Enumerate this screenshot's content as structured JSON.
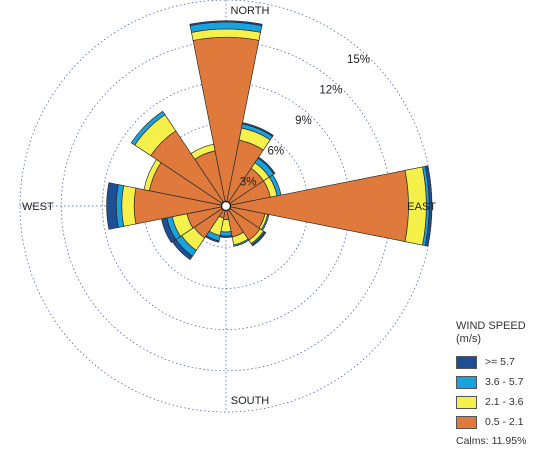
{
  "chart_data": {
    "type": "wind-rose",
    "directions": [
      "N",
      "NNE",
      "NE",
      "ENE",
      "E",
      "ESE",
      "SE",
      "SSE",
      "S",
      "SSW",
      "SW",
      "WSW",
      "W",
      "WNW",
      "NW",
      "NNW"
    ],
    "direction_labels": {
      "north": "NORTH",
      "east": "EAST",
      "south": "SOUTH",
      "west": "WEST"
    },
    "rings": [
      3,
      6,
      9,
      12,
      15
    ],
    "ring_labels": [
      "3%",
      "6%",
      "9%",
      "12%",
      "15%"
    ],
    "series": [
      {
        "name": "0.5 - 2.1",
        "color": "#e07a3c",
        "values": [
          12.0,
          4.6,
          3.0,
          3.0,
          13.0,
          2.6,
          2.7,
          2.0,
          0.7,
          0.6,
          2.5,
          2.6,
          6.4,
          5.4,
          6.3,
          3.8
        ]
      },
      {
        "name": "2.1 - 3.6",
        "color": "#f5f04a",
        "values": [
          0.6,
          0.9,
          0.5,
          0.5,
          1.3,
          0.2,
          0.3,
          0.6,
          0.9,
          1.3,
          1.1,
          1.1,
          0.9,
          0.4,
          1.4,
          0.5
        ]
      },
      {
        "name": "3.6 - 5.7",
        "color": "#1aa2df",
        "values": [
          0.5,
          0.3,
          0.4,
          0.3,
          0.2,
          0.1,
          0.1,
          0.1,
          0.3,
          0.4,
          0.5,
          0.4,
          0.4,
          0.0,
          0.3,
          0.0
        ]
      },
      {
        "name": ">= 5.7",
        "color": "#1d4f96",
        "values": [
          0.1,
          0.1,
          0.1,
          0.0,
          0.2,
          0.0,
          0.1,
          0.0,
          0.1,
          0.1,
          0.3,
          0.4,
          0.7,
          0.0,
          0.0,
          0.0
        ]
      }
    ],
    "legend": {
      "title_line1": "WIND SPEED",
      "title_line2": "(m/s)",
      "items": [
        {
          "label": ">= 5.7",
          "color": "#1d4f96"
        },
        {
          "label": "3.6 - 5.7",
          "color": "#1aa2df"
        },
        {
          "label": "2.1 - 3.6",
          "color": "#f5f04a"
        },
        {
          "label": "0.5 - 2.1",
          "color": "#e07a3c"
        }
      ],
      "position": "bottom-right"
    },
    "calms_text": "Calms: 11.95%"
  }
}
